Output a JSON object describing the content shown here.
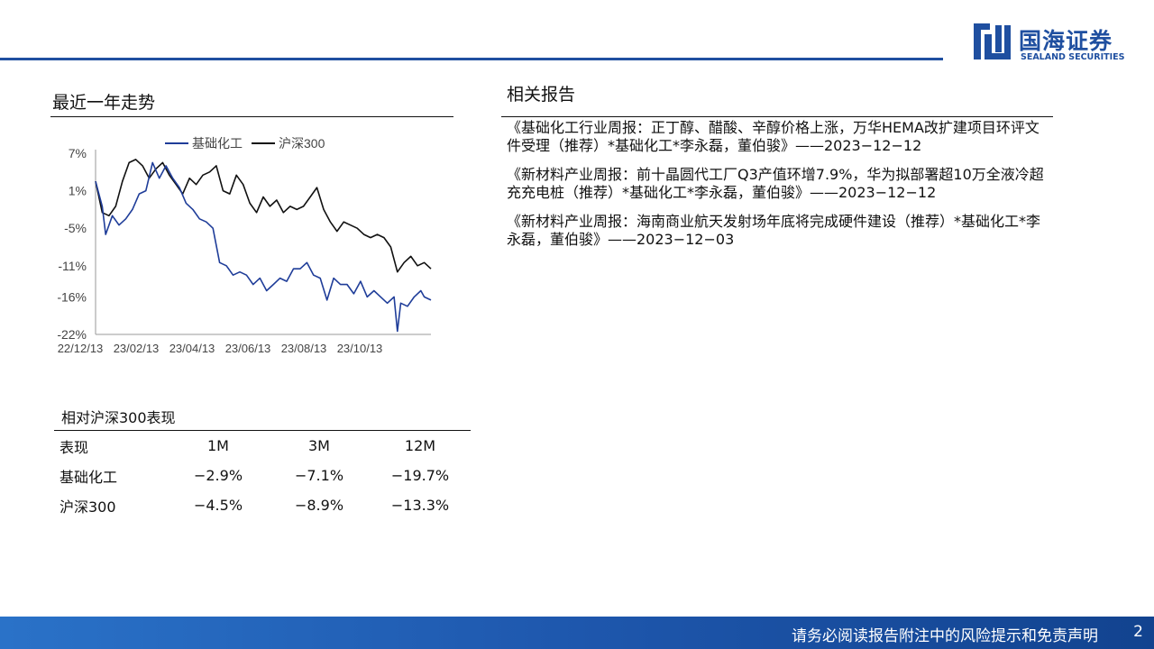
{
  "header": {
    "logo_cn": "国海证券",
    "logo_en": "SEALAND SECURITIES"
  },
  "colors": {
    "brand": "#1f4fa0",
    "series_sector": "#1f3d99",
    "series_index": "#111111"
  },
  "trend": {
    "title": "最近一年走势"
  },
  "chart_data": {
    "type": "line",
    "title": "",
    "xlabel": "",
    "ylabel": "",
    "ylim": [
      -22,
      7
    ],
    "yticks": [
      "7%",
      "1%",
      "-5%",
      "-11%",
      "-16%",
      "-22%"
    ],
    "ytick_values": [
      7,
      1,
      -5,
      -11,
      -16,
      -22
    ],
    "xticks": [
      "22/12/13",
      "23/02/13",
      "23/04/13",
      "23/06/13",
      "23/08/13",
      "23/10/13"
    ],
    "legend": "top",
    "series": [
      {
        "name": "基础化工",
        "color": "#1f3d99",
        "x": [
          0,
          0.02,
          0.03,
          0.05,
          0.07,
          0.09,
          0.11,
          0.13,
          0.15,
          0.17,
          0.19,
          0.21,
          0.23,
          0.25,
          0.27,
          0.29,
          0.31,
          0.33,
          0.35,
          0.37,
          0.39,
          0.41,
          0.43,
          0.45,
          0.47,
          0.49,
          0.51,
          0.53,
          0.55,
          0.57,
          0.59,
          0.61,
          0.63,
          0.65,
          0.67,
          0.69,
          0.71,
          0.73,
          0.75,
          0.77,
          0.79,
          0.81,
          0.83,
          0.85,
          0.87,
          0.89,
          0.9,
          0.91,
          0.93,
          0.95,
          0.97,
          0.98,
          1.0
        ],
        "values": [
          2.5,
          -1.5,
          -6.0,
          -3.0,
          -4.5,
          -3.5,
          -2.0,
          0.5,
          1.0,
          5.5,
          3.0,
          5.0,
          3.0,
          1.5,
          -1.0,
          -2.0,
          -3.5,
          -4.0,
          -5.0,
          -10.5,
          -11.0,
          -12.5,
          -12.0,
          -12.5,
          -14.0,
          -13.0,
          -15.0,
          -14.0,
          -13.0,
          -13.5,
          -11.5,
          -11.5,
          -10.5,
          -12.5,
          -13.0,
          -16.5,
          -13.0,
          -14.0,
          -14.0,
          -15.5,
          -13.5,
          -16.0,
          -15.0,
          -16.0,
          -17.0,
          -16.0,
          -21.5,
          -17.0,
          -17.5,
          -16.0,
          -15.0,
          -16.0,
          -16.5
        ]
      },
      {
        "name": "沪深300",
        "color": "#111111",
        "x": [
          0,
          0.02,
          0.04,
          0.06,
          0.08,
          0.1,
          0.12,
          0.14,
          0.16,
          0.18,
          0.2,
          0.22,
          0.24,
          0.26,
          0.28,
          0.3,
          0.32,
          0.34,
          0.36,
          0.38,
          0.4,
          0.42,
          0.44,
          0.46,
          0.48,
          0.5,
          0.52,
          0.54,
          0.56,
          0.58,
          0.6,
          0.62,
          0.64,
          0.66,
          0.68,
          0.7,
          0.72,
          0.74,
          0.76,
          0.78,
          0.8,
          0.82,
          0.84,
          0.86,
          0.88,
          0.9,
          0.92,
          0.94,
          0.96,
          0.98,
          1.0
        ],
        "values": [
          2.5,
          -2.5,
          -3.0,
          -1.5,
          2.5,
          5.5,
          6.0,
          5.0,
          3.0,
          4.5,
          5.5,
          3.5,
          2.0,
          0.5,
          3.0,
          2.0,
          3.5,
          4.0,
          5.0,
          1.0,
          0.5,
          3.5,
          2.0,
          -1.0,
          -2.5,
          0.0,
          -1.5,
          -0.5,
          -2.5,
          -1.5,
          -2.0,
          -1.5,
          0.0,
          1.5,
          -2.0,
          -4.0,
          -5.5,
          -4.0,
          -4.5,
          -5.0,
          -6.0,
          -6.5,
          -6.0,
          -6.5,
          -8.0,
          -12.0,
          -10.5,
          -9.5,
          -11.0,
          -10.5,
          -11.5
        ]
      }
    ]
  },
  "performance": {
    "title": "相对沪深300表现",
    "header": [
      "表现",
      "1M",
      "3M",
      "12M"
    ],
    "rows": [
      [
        "基础化工",
        "−2.9%",
        "−7.1%",
        "−19.7%"
      ],
      [
        "沪深300",
        "−4.5%",
        "−8.9%",
        "−13.3%"
      ]
    ]
  },
  "reports": {
    "title": "相关报告",
    "items": [
      "《基础化工行业周报：正丁醇、醋酸、辛醇价格上涨，万华HEMA改扩建项目环评文件受理（推荐）*基础化工*李永磊，董伯骏》——2023−12−12",
      "《新材料产业周报：前十晶圆代工厂Q3产值环增7.9%，华为拟部署超10万全液冷超充充电桩（推荐）*基础化工*李永磊，董伯骏》——2023−12−12",
      "《新材料产业周报：海南商业航天发射场年底将完成硬件建设（推荐）*基础化工*李永磊，董伯骏》——2023−12−03"
    ]
  },
  "footer": {
    "disclaimer": "请务必阅读报告附注中的风险提示和免责声明",
    "page": "2"
  }
}
